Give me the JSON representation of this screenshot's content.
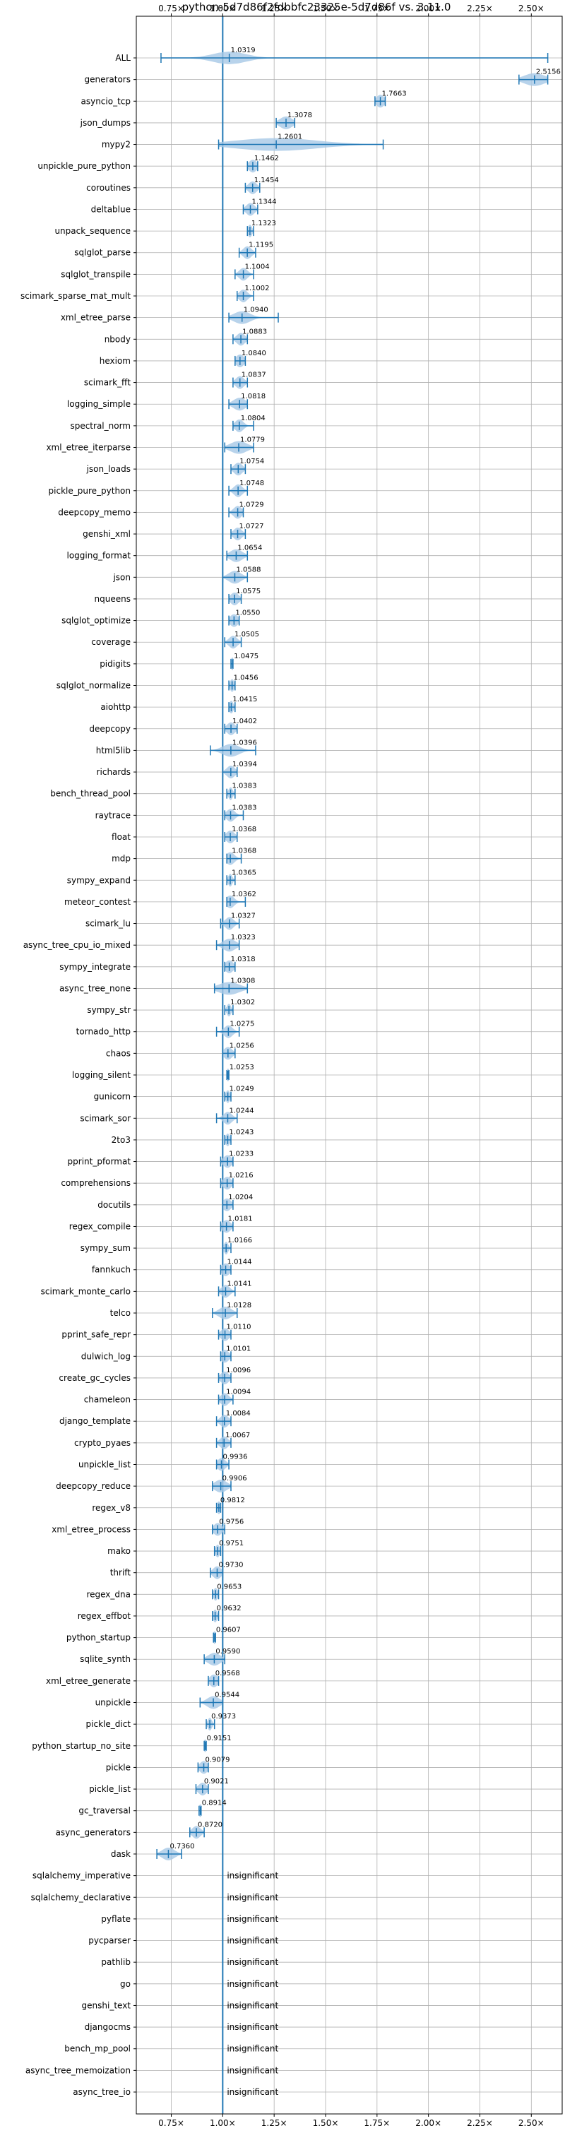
{
  "chart_data": {
    "type": "violin",
    "title": "python-5d7d86f2fdbbfc23325e-5d7d86f vs. 3.11.0",
    "xlim": [
      0.58,
      2.65
    ],
    "x_ticks": [
      0.75,
      1.0,
      1.25,
      1.5,
      1.75,
      2.0,
      2.25,
      2.5
    ],
    "x_tick_labels": [
      "0.75×",
      "1.00×",
      "1.25×",
      "1.50×",
      "1.75×",
      "2.00×",
      "2.25×",
      "2.50×"
    ],
    "reference_line": 1.0,
    "grid": true,
    "insignificant_text": "insignificant",
    "benchmarks": [
      {
        "name": "ALL",
        "value": 1.0319,
        "label": "1.0319",
        "min": 0.7,
        "max": 2.58,
        "spread": 0.08
      },
      {
        "name": "generators",
        "value": 2.5156,
        "label": "2.5156",
        "min": 2.44,
        "max": 2.58,
        "spread": 0.05
      },
      {
        "name": "asyncio_tcp",
        "value": 1.7663,
        "label": "1.7663",
        "min": 1.74,
        "max": 1.79,
        "spread": 0.02
      },
      {
        "name": "json_dumps",
        "value": 1.3078,
        "label": "1.3078",
        "min": 1.26,
        "max": 1.35,
        "spread": 0.03
      },
      {
        "name": "mypy2",
        "value": 1.2601,
        "label": "1.2601",
        "min": 0.98,
        "max": 1.78,
        "spread": 0.2
      },
      {
        "name": "unpickle_pure_python",
        "value": 1.1462,
        "label": "1.1462",
        "min": 1.12,
        "max": 1.17,
        "spread": 0.02
      },
      {
        "name": "coroutines",
        "value": 1.1454,
        "label": "1.1454",
        "min": 1.11,
        "max": 1.18,
        "spread": 0.02
      },
      {
        "name": "deltablue",
        "value": 1.1344,
        "label": "1.1344",
        "min": 1.1,
        "max": 1.17,
        "spread": 0.02
      },
      {
        "name": "unpack_sequence",
        "value": 1.1323,
        "label": "1.1323",
        "min": 1.12,
        "max": 1.15,
        "spread": 0.01
      },
      {
        "name": "sqlglot_parse",
        "value": 1.1195,
        "label": "1.1195",
        "min": 1.08,
        "max": 1.16,
        "spread": 0.02
      },
      {
        "name": "sqlglot_transpile",
        "value": 1.1004,
        "label": "1.1004",
        "min": 1.06,
        "max": 1.15,
        "spread": 0.02
      },
      {
        "name": "scimark_sparse_mat_mult",
        "value": 1.1002,
        "label": "1.1002",
        "min": 1.07,
        "max": 1.15,
        "spread": 0.02
      },
      {
        "name": "xml_etree_parse",
        "value": 1.094,
        "label": "1.0940",
        "min": 1.03,
        "max": 1.27,
        "spread": 0.04
      },
      {
        "name": "nbody",
        "value": 1.0883,
        "label": "1.0883",
        "min": 1.05,
        "max": 1.12,
        "spread": 0.02
      },
      {
        "name": "hexiom",
        "value": 1.084,
        "label": "1.0840",
        "min": 1.06,
        "max": 1.11,
        "spread": 0.02
      },
      {
        "name": "scimark_fft",
        "value": 1.0837,
        "label": "1.0837",
        "min": 1.05,
        "max": 1.12,
        "spread": 0.02
      },
      {
        "name": "logging_simple",
        "value": 1.0818,
        "label": "1.0818",
        "min": 1.03,
        "max": 1.12,
        "spread": 0.03
      },
      {
        "name": "spectral_norm",
        "value": 1.0804,
        "label": "1.0804",
        "min": 1.05,
        "max": 1.15,
        "spread": 0.02
      },
      {
        "name": "xml_etree_iterparse",
        "value": 1.0779,
        "label": "1.0779",
        "min": 1.01,
        "max": 1.15,
        "spread": 0.04
      },
      {
        "name": "json_loads",
        "value": 1.0754,
        "label": "1.0754",
        "min": 1.04,
        "max": 1.11,
        "spread": 0.02
      },
      {
        "name": "pickle_pure_python",
        "value": 1.0748,
        "label": "1.0748",
        "min": 1.03,
        "max": 1.12,
        "spread": 0.02
      },
      {
        "name": "deepcopy_memo",
        "value": 1.0729,
        "label": "1.0729",
        "min": 1.03,
        "max": 1.1,
        "spread": 0.02
      },
      {
        "name": "genshi_xml",
        "value": 1.0727,
        "label": "1.0727",
        "min": 1.04,
        "max": 1.11,
        "spread": 0.02
      },
      {
        "name": "logging_format",
        "value": 1.0654,
        "label": "1.0654",
        "min": 1.02,
        "max": 1.12,
        "spread": 0.03
      },
      {
        "name": "json",
        "value": 1.0588,
        "label": "1.0588",
        "min": 1.0,
        "max": 1.12,
        "spread": 0.03
      },
      {
        "name": "nqueens",
        "value": 1.0575,
        "label": "1.0575",
        "min": 1.03,
        "max": 1.09,
        "spread": 0.02
      },
      {
        "name": "sqlglot_optimize",
        "value": 1.055,
        "label": "1.0550",
        "min": 1.03,
        "max": 1.08,
        "spread": 0.02
      },
      {
        "name": "coverage",
        "value": 1.0505,
        "label": "1.0505",
        "min": 1.01,
        "max": 1.09,
        "spread": 0.02
      },
      {
        "name": "pidigits",
        "value": 1.0475,
        "label": "1.0475",
        "min": 1.04,
        "max": 1.05,
        "spread": 0.005
      },
      {
        "name": "sqlglot_normalize",
        "value": 1.0456,
        "label": "1.0456",
        "min": 1.03,
        "max": 1.06,
        "spread": 0.01
      },
      {
        "name": "aiohttp",
        "value": 1.0415,
        "label": "1.0415",
        "min": 1.03,
        "max": 1.06,
        "spread": 0.01
      },
      {
        "name": "deepcopy",
        "value": 1.0402,
        "label": "1.0402",
        "min": 1.01,
        "max": 1.07,
        "spread": 0.02
      },
      {
        "name": "html5lib",
        "value": 1.0396,
        "label": "1.0396",
        "min": 0.94,
        "max": 1.16,
        "spread": 0.04
      },
      {
        "name": "richards",
        "value": 1.0394,
        "label": "1.0394",
        "min": 1.0,
        "max": 1.07,
        "spread": 0.02
      },
      {
        "name": "bench_thread_pool",
        "value": 1.0383,
        "label": "1.0383",
        "min": 1.02,
        "max": 1.06,
        "spread": 0.01
      },
      {
        "name": "raytrace",
        "value": 1.0383,
        "label": "1.0383",
        "min": 1.01,
        "max": 1.1,
        "spread": 0.02
      },
      {
        "name": "float",
        "value": 1.0368,
        "label": "1.0368",
        "min": 1.01,
        "max": 1.07,
        "spread": 0.02
      },
      {
        "name": "mdp",
        "value": 1.0368,
        "label": "1.0368",
        "min": 1.02,
        "max": 1.09,
        "spread": 0.02
      },
      {
        "name": "sympy_expand",
        "value": 1.0365,
        "label": "1.0365",
        "min": 1.02,
        "max": 1.06,
        "spread": 0.01
      },
      {
        "name": "meteor_contest",
        "value": 1.0362,
        "label": "1.0362",
        "min": 1.02,
        "max": 1.11,
        "spread": 0.02
      },
      {
        "name": "scimark_lu",
        "value": 1.0327,
        "label": "1.0327",
        "min": 0.99,
        "max": 1.08,
        "spread": 0.02
      },
      {
        "name": "async_tree_cpu_io_mixed",
        "value": 1.0323,
        "label": "1.0323",
        "min": 0.97,
        "max": 1.08,
        "spread": 0.03
      },
      {
        "name": "sympy_integrate",
        "value": 1.0318,
        "label": "1.0318",
        "min": 1.01,
        "max": 1.06,
        "spread": 0.02
      },
      {
        "name": "async_tree_none",
        "value": 1.0308,
        "label": "1.0308",
        "min": 0.96,
        "max": 1.12,
        "spread": 0.05
      },
      {
        "name": "sympy_str",
        "value": 1.0302,
        "label": "1.0302",
        "min": 1.01,
        "max": 1.05,
        "spread": 0.01
      },
      {
        "name": "tornado_http",
        "value": 1.0275,
        "label": "1.0275",
        "min": 0.97,
        "max": 1.08,
        "spread": 0.02
      },
      {
        "name": "chaos",
        "value": 1.0256,
        "label": "1.0256",
        "min": 1.0,
        "max": 1.06,
        "spread": 0.02
      },
      {
        "name": "logging_silent",
        "value": 1.0253,
        "label": "1.0253",
        "min": 1.02,
        "max": 1.03,
        "spread": 0.005
      },
      {
        "name": "gunicorn",
        "value": 1.0249,
        "label": "1.0249",
        "min": 1.01,
        "max": 1.04,
        "spread": 0.01
      },
      {
        "name": "scimark_sor",
        "value": 1.0244,
        "label": "1.0244",
        "min": 0.97,
        "max": 1.07,
        "spread": 0.02
      },
      {
        "name": "2to3",
        "value": 1.0243,
        "label": "1.0243",
        "min": 1.01,
        "max": 1.04,
        "spread": 0.01
      },
      {
        "name": "pprint_pformat",
        "value": 1.0233,
        "label": "1.0233",
        "min": 0.99,
        "max": 1.05,
        "spread": 0.02
      },
      {
        "name": "comprehensions",
        "value": 1.0216,
        "label": "1.0216",
        "min": 0.99,
        "max": 1.05,
        "spread": 0.02
      },
      {
        "name": "docutils",
        "value": 1.0204,
        "label": "1.0204",
        "min": 1.0,
        "max": 1.05,
        "spread": 0.02
      },
      {
        "name": "regex_compile",
        "value": 1.0181,
        "label": "1.0181",
        "min": 0.99,
        "max": 1.05,
        "spread": 0.02
      },
      {
        "name": "sympy_sum",
        "value": 1.0166,
        "label": "1.0166",
        "min": 1.0,
        "max": 1.04,
        "spread": 0.01
      },
      {
        "name": "fannkuch",
        "value": 1.0144,
        "label": "1.0144",
        "min": 0.99,
        "max": 1.04,
        "spread": 0.02
      },
      {
        "name": "scimark_monte_carlo",
        "value": 1.0141,
        "label": "1.0141",
        "min": 0.98,
        "max": 1.06,
        "spread": 0.02
      },
      {
        "name": "telco",
        "value": 1.0128,
        "label": "1.0128",
        "min": 0.95,
        "max": 1.07,
        "spread": 0.03
      },
      {
        "name": "pprint_safe_repr",
        "value": 1.011,
        "label": "1.0110",
        "min": 0.98,
        "max": 1.04,
        "spread": 0.02
      },
      {
        "name": "dulwich_log",
        "value": 1.0101,
        "label": "1.0101",
        "min": 0.99,
        "max": 1.04,
        "spread": 0.02
      },
      {
        "name": "create_gc_cycles",
        "value": 1.0096,
        "label": "1.0096",
        "min": 0.98,
        "max": 1.04,
        "spread": 0.02
      },
      {
        "name": "chameleon",
        "value": 1.0094,
        "label": "1.0094",
        "min": 0.98,
        "max": 1.05,
        "spread": 0.02
      },
      {
        "name": "django_template",
        "value": 1.0084,
        "label": "1.0084",
        "min": 0.97,
        "max": 1.04,
        "spread": 0.02
      },
      {
        "name": "crypto_pyaes",
        "value": 1.0067,
        "label": "1.0067",
        "min": 0.97,
        "max": 1.04,
        "spread": 0.02
      },
      {
        "name": "unpickle_list",
        "value": 0.9936,
        "label": "0.9936",
        "min": 0.97,
        "max": 1.03,
        "spread": 0.02
      },
      {
        "name": "deepcopy_reduce",
        "value": 0.9906,
        "label": "0.9906",
        "min": 0.95,
        "max": 1.04,
        "spread": 0.03
      },
      {
        "name": "regex_v8",
        "value": 0.9812,
        "label": "0.9812",
        "min": 0.97,
        "max": 0.99,
        "spread": 0.01
      },
      {
        "name": "xml_etree_process",
        "value": 0.9756,
        "label": "0.9756",
        "min": 0.95,
        "max": 1.01,
        "spread": 0.02
      },
      {
        "name": "mako",
        "value": 0.9751,
        "label": "0.9751",
        "min": 0.96,
        "max": 0.99,
        "spread": 0.01
      },
      {
        "name": "thrift",
        "value": 0.973,
        "label": "0.9730",
        "min": 0.94,
        "max": 1.0,
        "spread": 0.02
      },
      {
        "name": "regex_dna",
        "value": 0.9653,
        "label": "0.9653",
        "min": 0.95,
        "max": 0.98,
        "spread": 0.01
      },
      {
        "name": "regex_effbot",
        "value": 0.9632,
        "label": "0.9632",
        "min": 0.95,
        "max": 0.98,
        "spread": 0.01
      },
      {
        "name": "python_startup",
        "value": 0.9607,
        "label": "0.9607",
        "min": 0.955,
        "max": 0.965,
        "spread": 0.005
      },
      {
        "name": "sqlite_synth",
        "value": 0.959,
        "label": "0.9590",
        "min": 0.91,
        "max": 1.01,
        "spread": 0.03
      },
      {
        "name": "xml_etree_generate",
        "value": 0.9568,
        "label": "0.9568",
        "min": 0.93,
        "max": 0.98,
        "spread": 0.02
      },
      {
        "name": "unpickle",
        "value": 0.9544,
        "label": "0.9544",
        "min": 0.89,
        "max": 1.0,
        "spread": 0.03
      },
      {
        "name": "pickle_dict",
        "value": 0.9373,
        "label": "0.9373",
        "min": 0.92,
        "max": 0.96,
        "spread": 0.01
      },
      {
        "name": "python_startup_no_site",
        "value": 0.9151,
        "label": "0.9151",
        "min": 0.91,
        "max": 0.92,
        "spread": 0.005
      },
      {
        "name": "pickle",
        "value": 0.9079,
        "label": "0.9079",
        "min": 0.88,
        "max": 0.93,
        "spread": 0.02
      },
      {
        "name": "pickle_list",
        "value": 0.9021,
        "label": "0.9021",
        "min": 0.87,
        "max": 0.93,
        "spread": 0.02
      },
      {
        "name": "gc_traversal",
        "value": 0.8914,
        "label": "0.8914",
        "min": 0.885,
        "max": 0.895,
        "spread": 0.005
      },
      {
        "name": "async_generators",
        "value": 0.872,
        "label": "0.8720",
        "min": 0.84,
        "max": 0.91,
        "spread": 0.02
      },
      {
        "name": "dask",
        "value": 0.736,
        "label": "0.7360",
        "min": 0.68,
        "max": 0.8,
        "spread": 0.03
      },
      {
        "name": "sqlalchemy_imperative",
        "insignificant": true
      },
      {
        "name": "sqlalchemy_declarative",
        "insignificant": true
      },
      {
        "name": "pyflate",
        "insignificant": true
      },
      {
        "name": "pycparser",
        "insignificant": true
      },
      {
        "name": "pathlib",
        "insignificant": true
      },
      {
        "name": "go",
        "insignificant": true
      },
      {
        "name": "genshi_text",
        "insignificant": true
      },
      {
        "name": "djangocms",
        "insignificant": true
      },
      {
        "name": "bench_mp_pool",
        "insignificant": true
      },
      {
        "name": "async_tree_memoization",
        "insignificant": true
      },
      {
        "name": "async_tree_io",
        "insignificant": true
      }
    ]
  },
  "colors": {
    "line": "#1f77b4",
    "body": "#a6c8e6",
    "grid": "#b0b0b0",
    "axis": "#000000"
  }
}
